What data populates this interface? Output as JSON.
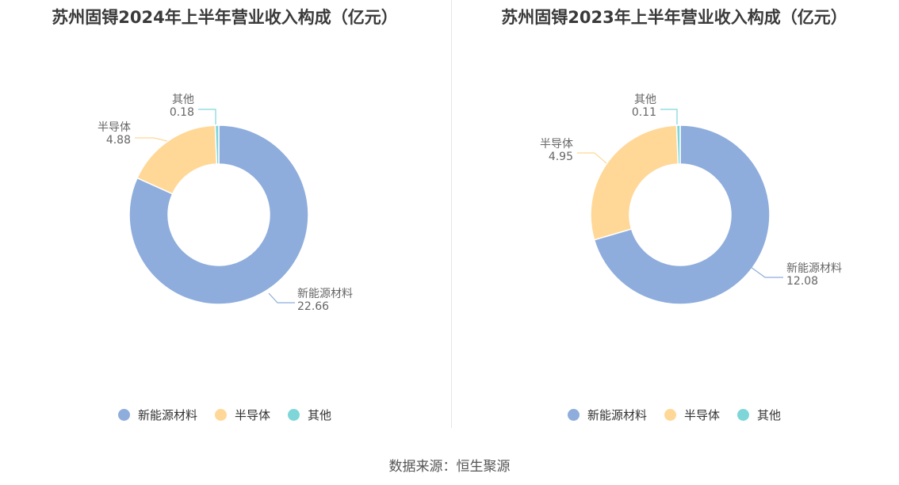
{
  "source": "数据来源：恒生聚源",
  "chart_data": [
    {
      "type": "pie",
      "title": "苏州固锝2024年上半年营业收入构成（亿元）",
      "slices": [
        {
          "label": "新能源材料",
          "value": 22.66,
          "display": "22.66",
          "color": "#8eaddc"
        },
        {
          "label": "半导体",
          "value": 4.88,
          "display": "4.88",
          "color": "#ffd898"
        },
        {
          "label": "其他",
          "value": 0.18,
          "display": "0.18",
          "color": "#7fd6d9"
        }
      ],
      "legend": [
        "新能源材料",
        "半导体",
        "其他"
      ],
      "legend_position": "bottom"
    },
    {
      "type": "pie",
      "title": "苏州固锝2023年上半年营业收入构成（亿元）",
      "slices": [
        {
          "label": "新能源材料",
          "value": 12.08,
          "display": "12.08",
          "color": "#8eaddc"
        },
        {
          "label": "半导体",
          "value": 4.95,
          "display": "4.95",
          "color": "#ffd898"
        },
        {
          "label": "其他",
          "value": 0.11,
          "display": "0.11",
          "color": "#7fd6d9"
        }
      ],
      "legend": [
        "新能源材料",
        "半导体",
        "其他"
      ],
      "legend_position": "bottom"
    }
  ]
}
